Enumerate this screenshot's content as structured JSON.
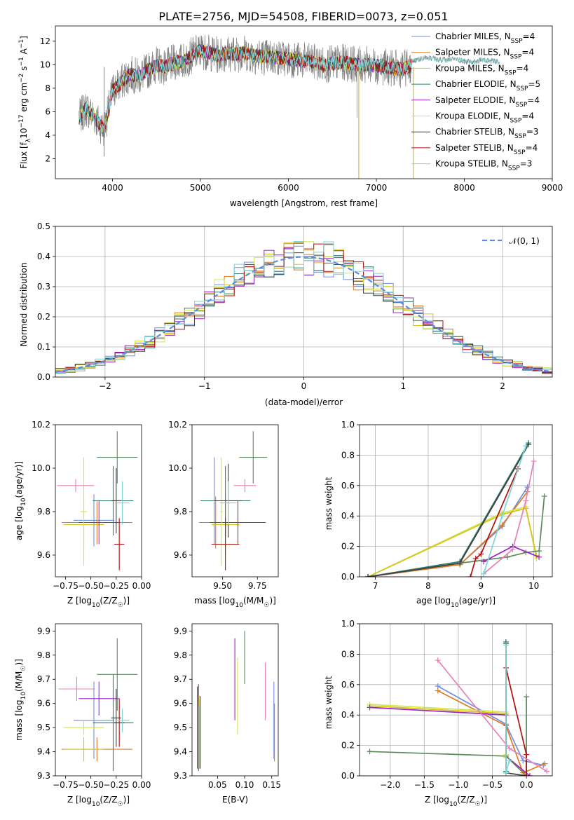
{
  "title": "PLATE=2756, MJD=54508, FIBERID=0073, z=0.051",
  "colors": {
    "s1": "#6f8fe0",
    "s2": "#e07a1f",
    "s3": "#d9c21e",
    "s4": "#2e7d6e",
    "s5": "#a020c8",
    "s6": "#cfe84a",
    "s7": "#404040",
    "s8": "#b01010",
    "s9": "#7fd4d8",
    "pink": "#e880b8",
    "green": "#5a8a5a"
  },
  "chart_data": [
    {
      "type": "line",
      "panel": "spectrum",
      "xlabel": "wavelength [Angstrom, rest frame]",
      "ylabel": "Flux [fλ10^-17 erg cm^-2 s^-1 A^-1]",
      "xlim": [
        3350,
        9000
      ],
      "ylim": [
        0.3,
        13.3
      ],
      "xticks": [
        4000,
        5000,
        6000,
        7000,
        8000,
        9000
      ],
      "yticks": [
        2,
        4,
        6,
        8,
        10,
        12
      ],
      "grid": false,
      "legend_position": "right",
      "series": [
        {
          "name": "Chabrier MILES, N_SSP=4"
        },
        {
          "name": "Salpeter MILES, N_SSP=4"
        },
        {
          "name": "Kroupa MILES, N_SSP=4"
        },
        {
          "name": "Chabrier ELODIE, N_SSP=5"
        },
        {
          "name": "Salpeter ELODIE, N_SSP=4"
        },
        {
          "name": "Kroupa ELODIE, N_SSP=4"
        },
        {
          "name": "Chabrier STELIB, N_SSP=3"
        },
        {
          "name": "Salpeter STELIB, N_SSP=4"
        },
        {
          "name": "Kroupa STELIB, N_SSP=3"
        }
      ],
      "continuum": {
        "x": [
          3620,
          3700,
          3800,
          3900,
          3950,
          4000,
          4100,
          4200,
          4300,
          4400,
          4500,
          4600,
          4700,
          4800,
          4850,
          4900,
          5000,
          5100,
          5200,
          5300,
          5400,
          5500,
          5600,
          5700,
          5800,
          5900,
          6000,
          6100,
          6200,
          6300,
          6400,
          6500,
          6600,
          6700,
          6800,
          6900,
          7000,
          7100,
          7200,
          7300,
          7400
        ],
        "y": [
          5.5,
          6.3,
          5.5,
          4.5,
          6.0,
          7.8,
          8.5,
          9.2,
          9.0,
          9.5,
          10.0,
          9.8,
          10.2,
          10.3,
          10.5,
          10.8,
          11.2,
          11.0,
          10.8,
          11.0,
          10.9,
          11.0,
          10.8,
          10.7,
          10.6,
          10.6,
          10.5,
          10.4,
          10.3,
          10.2,
          10.0,
          10.1,
          10.2,
          10.1,
          10.0,
          10.0,
          9.9,
          9.8,
          9.7,
          9.6,
          10.0
        ]
      },
      "continuum_red": {
        "x": [
          7400,
          7500,
          7600,
          7700,
          7800,
          7900,
          8000,
          8100,
          8200,
          8300,
          8400
        ],
        "y": [
          10.3,
          10.5,
          10.6,
          10.4,
          10.4,
          10.5,
          10.3,
          10.2,
          10.4,
          10.3,
          10.2
        ]
      }
    },
    {
      "type": "bar",
      "panel": "histogram",
      "xlabel": "(data-model)/error",
      "ylabel": "Normed distribution",
      "xlim": [
        -2.5,
        2.5
      ],
      "ylim": [
        0,
        0.5
      ],
      "xticks": [
        -2,
        -1,
        0,
        1,
        2
      ],
      "yticks": [
        0.0,
        0.1,
        0.2,
        0.3,
        0.4,
        0.5
      ],
      "grid": true,
      "bin_width": 0.1,
      "series": [
        {
          "name": "N(0,1)",
          "label_tex": "𝒩(0, 1)",
          "function": "normal",
          "mean": 0,
          "sigma": 1
        }
      ]
    },
    {
      "type": "scatter",
      "panel": "age_vs_Z",
      "xlabel": "Z [log10(Z/Z☉)]",
      "ylabel": "age  [log10(age/yr)]",
      "xlim": [
        -0.85,
        0.0
      ],
      "ylim": [
        9.5,
        10.2
      ],
      "xticks": [
        -0.75,
        -0.5,
        -0.25,
        0.0
      ],
      "yticks": [
        9.6,
        9.8,
        10.0,
        10.2
      ],
      "points": [
        {
          "c": "s1",
          "x": -0.47,
          "y": 9.76,
          "xerr": 0.2,
          "yerr": 0.12
        },
        {
          "c": "s2",
          "x": -0.44,
          "y": 9.75,
          "xerr": 0.35,
          "yerr": 0.1
        },
        {
          "c": "s3",
          "x": -0.57,
          "y": 9.74,
          "xerr": 0.2,
          "yerr": 0.1
        },
        {
          "c": "s4",
          "x": -0.28,
          "y": 9.85,
          "xerr": 0.2,
          "yerr": 0.16
        },
        {
          "c": "s5",
          "x": -0.42,
          "y": 9.75,
          "xerr": 0.2,
          "yerr": 0.1
        },
        {
          "c": "s6",
          "x": -0.57,
          "y": 9.8,
          "xerr": 0.03,
          "yerr": 0.25
        },
        {
          "c": "s7",
          "x": -0.25,
          "y": 9.85,
          "xerr": 0.05,
          "yerr": 0.15
        },
        {
          "c": "s8",
          "x": -0.22,
          "y": 9.65,
          "xerr": 0.05,
          "yerr": 0.12
        },
        {
          "c": "s9",
          "x": -0.19,
          "y": 9.84,
          "xerr": 0.07,
          "yerr": 0.1
        },
        {
          "c": "pink",
          "x": -0.65,
          "y": 9.92,
          "xerr": 0.18,
          "yerr": 0.03
        },
        {
          "c": "green",
          "x": -0.24,
          "y": 10.05,
          "xerr": 0.2,
          "yerr": 0.12
        }
      ]
    },
    {
      "type": "scatter",
      "panel": "age_vs_mass",
      "xlabel": "mass [log10(M/M☉)]",
      "ylabel": "",
      "xlim": [
        9.28,
        9.9
      ],
      "ylim": [
        9.5,
        10.2
      ],
      "xticks": [
        9.5,
        9.75
      ],
      "yticks": [
        9.6,
        9.8,
        10.0,
        10.2
      ],
      "points": [
        {
          "c": "s1",
          "x": 9.44,
          "y": 9.85,
          "xerr": 0.1,
          "yerr": 0.2
        },
        {
          "c": "s2",
          "x": 9.45,
          "y": 9.75,
          "xerr": 0.12,
          "yerr": 0.12
        },
        {
          "c": "s3",
          "x": 9.52,
          "y": 9.74,
          "xerr": 0.1,
          "yerr": 0.14
        },
        {
          "c": "s4",
          "x": 9.52,
          "y": 9.85,
          "xerr": 0.18,
          "yerr": 0.16
        },
        {
          "c": "s5",
          "x": 9.61,
          "y": 9.75,
          "xerr": 0.2,
          "yerr": 0.1
        },
        {
          "c": "s6",
          "x": 9.49,
          "y": 9.8,
          "xerr": 0.01,
          "yerr": 0.25
        },
        {
          "c": "s7",
          "x": 9.54,
          "y": 9.85,
          "xerr": 0.1,
          "yerr": 0.17
        },
        {
          "c": "s8",
          "x": 9.52,
          "y": 9.65,
          "xerr": 0.1,
          "yerr": 0.12
        },
        {
          "c": "s9",
          "x": 9.54,
          "y": 9.84,
          "xerr": 0.06,
          "yerr": 0.1
        },
        {
          "c": "pink",
          "x": 9.66,
          "y": 9.92,
          "xerr": 0.08,
          "yerr": 0.03
        },
        {
          "c": "green",
          "x": 9.72,
          "y": 10.05,
          "xerr": 0.1,
          "yerr": 0.12
        }
      ]
    },
    {
      "type": "line",
      "panel": "weight_vs_age",
      "xlabel": "age  [log10(age/yr)]",
      "ylabel": "mass weight",
      "xlim": [
        6.7,
        10.35
      ],
      "ylim": [
        0,
        1
      ],
      "xticks": [
        7,
        8,
        9,
        10
      ],
      "yticks": [
        0.0,
        0.2,
        0.4,
        0.6,
        0.8,
        1.0
      ],
      "grid": true,
      "series": [
        {
          "c": "s1",
          "x": [
            6.86,
            8.6,
            9.4,
            9.88
          ],
          "y": [
            0.0,
            0.08,
            0.33,
            0.59
          ]
        },
        {
          "c": "s2",
          "x": [
            6.86,
            8.6,
            9.4,
            9.88
          ],
          "y": [
            0.0,
            0.08,
            0.34,
            0.56
          ]
        },
        {
          "c": "s6",
          "x": [
            6.86,
            9.4,
            9.85,
            10.05
          ],
          "y": [
            0.0,
            0.42,
            0.46,
            0.12
          ]
        },
        {
          "c": "s3",
          "x": [
            6.86,
            9.4,
            9.85,
            10.05
          ],
          "y": [
            0.0,
            0.41,
            0.45,
            0.14
          ]
        },
        {
          "c": "green",
          "x": [
            6.86,
            8.6,
            9.5,
            9.85,
            10.1,
            10.2
          ],
          "y": [
            0.0,
            0.09,
            0.13,
            0.16,
            0.17,
            0.53
          ]
        },
        {
          "c": "s4",
          "x": [
            6.86,
            8.6,
            9.9
          ],
          "y": [
            0.0,
            0.1,
            0.88
          ]
        },
        {
          "c": "s7",
          "x": [
            6.86,
            8.6,
            9.9
          ],
          "y": [
            0.0,
            0.09,
            0.87
          ]
        },
        {
          "c": "s8",
          "x": [
            8.8,
            8.9,
            9.0,
            9.7
          ],
          "y": [
            0.0,
            0.12,
            0.15,
            0.71
          ]
        },
        {
          "c": "s5",
          "x": [
            9.05,
            9.6,
            10.1
          ],
          "y": [
            0.1,
            0.2,
            0.13
          ]
        },
        {
          "c": "pink",
          "x": [
            9.05,
            9.6,
            9.85,
            10.0
          ],
          "y": [
            0.02,
            0.18,
            0.5,
            0.76
          ]
        },
        {
          "c": "s9",
          "x": [
            9.05,
            9.4,
            9.85
          ],
          "y": [
            0.02,
            0.4,
            0.86
          ]
        }
      ]
    },
    {
      "type": "scatter",
      "panel": "mass_vs_Z",
      "xlabel": "Z [log10(Z/Z☉)]",
      "ylabel": "mass [log10(M/M☉)]",
      "xlim": [
        -0.85,
        0.0
      ],
      "ylim": [
        9.3,
        9.93
      ],
      "xticks": [
        -0.75,
        -0.5,
        -0.25,
        0.0
      ],
      "yticks": [
        9.3,
        9.4,
        9.5,
        9.6,
        9.7,
        9.8,
        9.9
      ],
      "points": [
        {
          "c": "s1",
          "x": -0.47,
          "y": 9.53,
          "xerr": 0.2,
          "yerr": 0.16
        },
        {
          "c": "s2",
          "x": -0.44,
          "y": 9.41,
          "xerr": 0.35,
          "yerr": 0.05
        },
        {
          "c": "s3",
          "x": -0.57,
          "y": 9.41,
          "xerr": 0.2,
          "yerr": 0.05
        },
        {
          "c": "s4",
          "x": -0.28,
          "y": 9.52,
          "xerr": 0.2,
          "yerr": 0.2
        },
        {
          "c": "s5",
          "x": -0.42,
          "y": 9.62,
          "xerr": 0.2,
          "yerr": 0.07
        },
        {
          "c": "s6",
          "x": -0.57,
          "y": 9.5,
          "xerr": 0.2,
          "yerr": 0.03
        },
        {
          "c": "s7",
          "x": -0.25,
          "y": 9.54,
          "xerr": 0.05,
          "yerr": 0.12
        },
        {
          "c": "s8",
          "x": -0.22,
          "y": 9.52,
          "xerr": 0.05,
          "yerr": 0.1
        },
        {
          "c": "s9",
          "x": -0.19,
          "y": 9.53,
          "xerr": 0.07,
          "yerr": 0.05
        },
        {
          "c": "pink",
          "x": -0.64,
          "y": 9.66,
          "xerr": 0.18,
          "yerr": 0.05
        },
        {
          "c": "green",
          "x": -0.24,
          "y": 9.72,
          "xerr": 0.2,
          "yerr": 0.15
        }
      ]
    },
    {
      "type": "scatter",
      "panel": "mass_vs_ebv",
      "xlabel": "E(B-V)",
      "ylabel": "",
      "xlim": [
        0.003,
        0.162
      ],
      "ylim": [
        9.3,
        9.93
      ],
      "xticks": [
        0.05,
        0.1,
        0.15
      ],
      "yticks": [
        9.3,
        9.4,
        9.5,
        9.6,
        9.7,
        9.8,
        9.9
      ],
      "points": [
        {
          "c": "s1",
          "x": 0.154,
          "y": 9.53,
          "yerr": 0.16
        },
        {
          "c": "s2",
          "x": 0.155,
          "y": 9.48,
          "yerr": 0.12
        },
        {
          "c": "s3",
          "x": 0.017,
          "y": 9.48,
          "yerr": 0.15
        },
        {
          "c": "s4",
          "x": 0.015,
          "y": 9.5,
          "yerr": 0.18
        },
        {
          "c": "s5",
          "x": 0.082,
          "y": 9.7,
          "yerr": 0.17
        },
        {
          "c": "s6",
          "x": 0.087,
          "y": 9.63,
          "yerr": 0.16
        },
        {
          "c": "s7",
          "x": 0.018,
          "y": 9.48,
          "yerr": 0.15
        },
        {
          "c": "s8",
          "x": 0.013,
          "y": 9.5,
          "yerr": 0.17
        },
        {
          "c": "s9",
          "x": 0.016,
          "y": 9.46,
          "yerr": 0.13
        },
        {
          "c": "pink",
          "x": 0.138,
          "y": 9.65,
          "yerr": 0.12
        },
        {
          "c": "green",
          "x": 0.1,
          "y": 9.79,
          "yerr": 0.11
        }
      ]
    },
    {
      "type": "line",
      "panel": "weight_vs_Z",
      "xlabel": "Z [log10(Z/Z☉)]",
      "ylabel": "mass weight",
      "xlim": [
        -2.45,
        0.38
      ],
      "ylim": [
        0,
        1
      ],
      "xticks": [
        -2.0,
        -1.5,
        -1.0,
        -0.5,
        0.0
      ],
      "yticks": [
        0.0,
        0.2,
        0.4,
        0.6,
        0.8,
        1.0
      ],
      "grid": true,
      "series": [
        {
          "c": "s1",
          "x": [
            -1.3,
            -0.3,
            -0.05,
            0.25
          ],
          "y": [
            0.59,
            0.34,
            0.1,
            0.07
          ]
        },
        {
          "c": "s2",
          "x": [
            -1.3,
            -0.3,
            -0.05,
            0.27
          ],
          "y": [
            0.56,
            0.33,
            0.02,
            0.08
          ]
        },
        {
          "c": "s3",
          "x": [
            -2.3,
            -0.3,
            -0.3
          ],
          "y": [
            0.46,
            0.41,
            0.12
          ]
        },
        {
          "c": "s6",
          "x": [
            -2.3,
            -0.3,
            -0.3
          ],
          "y": [
            0.47,
            0.42,
            0.14
          ]
        },
        {
          "c": "s5",
          "x": [
            -2.3,
            -0.3,
            -0.3,
            0.05
          ],
          "y": [
            0.45,
            0.4,
            0.13,
            0.0
          ]
        },
        {
          "c": "green",
          "x": [
            -2.3,
            -0.3,
            0.0,
            0.0
          ],
          "y": [
            0.16,
            0.13,
            0.0,
            0.52
          ]
        },
        {
          "c": "s4",
          "x": [
            -0.3,
            -0.3
          ],
          "y": [
            0.03,
            0.88
          ]
        },
        {
          "c": "s7",
          "x": [
            -0.3,
            -0.3,
            0.0
          ],
          "y": [
            0.87,
            0.02,
            0.0
          ]
        },
        {
          "c": "s8",
          "x": [
            -0.3,
            0.0,
            0.0
          ],
          "y": [
            0.71,
            0.14,
            0.0
          ]
        },
        {
          "c": "pink",
          "x": [
            -1.3,
            -0.25,
            0.3
          ],
          "y": [
            0.76,
            0.18,
            0.03
          ]
        },
        {
          "c": "s9",
          "x": [
            -0.3,
            -0.3,
            -0.25
          ],
          "y": [
            0.86,
            0.02,
            0.1
          ]
        }
      ]
    }
  ]
}
